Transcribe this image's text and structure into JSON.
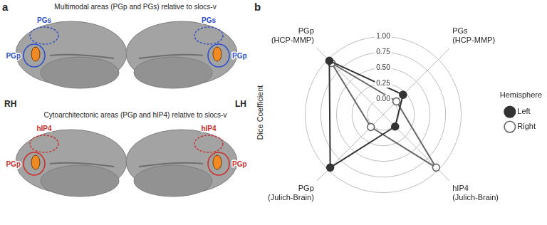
{
  "panel_a": {
    "letter": "a",
    "hemispheres": [
      "RH",
      "LH"
    ],
    "rows": [
      {
        "title": "Multimodal areas (PGp and PGs) relative to slocs-v",
        "areas": [
          "PGp",
          "PGs"
        ],
        "color": "#2f4fc9"
      },
      {
        "title": "Cytoarchitectonic areas (PGp and hIP4) relative to slocs-v",
        "areas": [
          "PGp",
          "hIP4"
        ],
        "color": "#c9302c"
      }
    ]
  },
  "chart_data": {
    "type": "radar",
    "panel_letter": "b",
    "ylabel": "Dice Coefficient",
    "categories": [
      "PGp (HCP-MMP)",
      "PGs (HCP-MMP)",
      "hIP4 (Julich-Brain)",
      "PGp (Julich-Brain)"
    ],
    "series": [
      {
        "name": "Left",
        "color": "#333333",
        "marker": "filled",
        "values": [
          0.97,
          0.2,
          0.02,
          0.95
        ]
      },
      {
        "name": "Right",
        "color": "#666666",
        "marker": "open",
        "values": [
          0.92,
          0.05,
          0.95,
          0.03
        ]
      }
    ],
    "ylim": [
      -0.25,
      1.25
    ],
    "yticks": [
      {
        "value": 0,
        "label": "0.00"
      },
      {
        "value": 0.25,
        "label": "0.25"
      },
      {
        "value": 0.5,
        "label": "0.50"
      },
      {
        "value": 0.75,
        "label": "0.75"
      },
      {
        "value": 1,
        "label": "1.00"
      }
    ],
    "grid": true,
    "legend": "right",
    "legend_title": "Hemisphere"
  }
}
